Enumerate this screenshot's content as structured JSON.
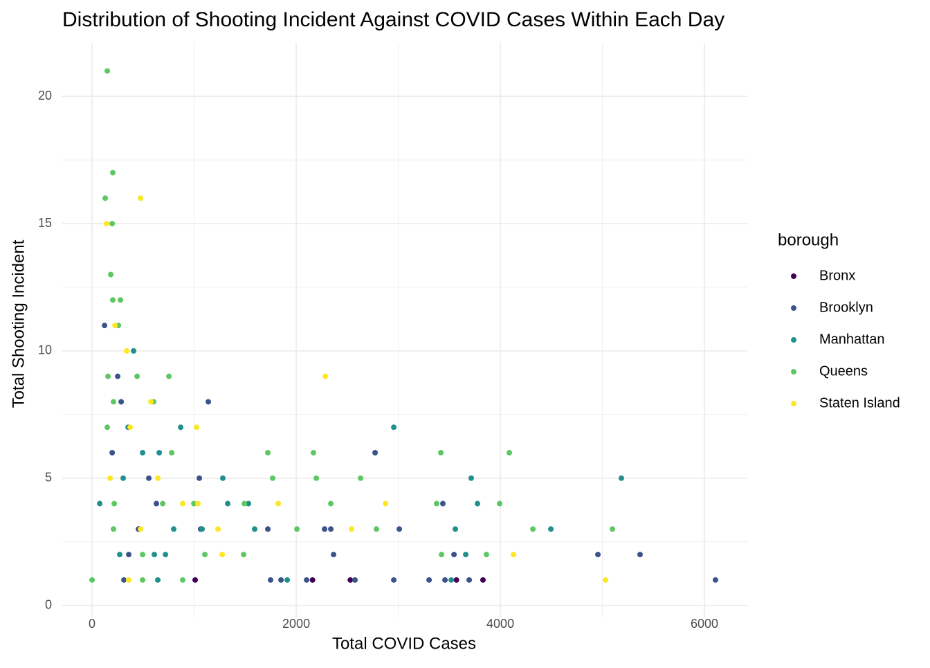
{
  "chart_data": {
    "type": "scatter",
    "title": "Distribution of Shooting Incident Against COVID Cases Within Each Day",
    "x_label": "Total COVID Cases",
    "y_label": "Total Shooting Incident",
    "legend_title": "borough",
    "legend_position": "right",
    "grid": true,
    "xlim": [
      -292,
      6420
    ],
    "ylim": [
      -0.5,
      22.1
    ],
    "xticks": [
      0,
      2000,
      4000,
      6000
    ],
    "yticks": [
      0,
      5,
      10,
      15,
      20
    ],
    "minor_xticks": [
      1000,
      3000,
      5000
    ],
    "minor_yticks": [
      2.5,
      7.5,
      12.5,
      17.5
    ],
    "series": [
      {
        "name": "Bronx",
        "color": "#440154",
        "x": [
          1010,
          2160,
          2530,
          3570,
          3830,
          460
        ],
        "values": [
          1,
          1,
          1,
          1,
          1,
          3
        ]
      },
      {
        "name": "Brooklyn",
        "color": "#3b528b",
        "x": [
          122,
          1139,
          2773,
          1051,
          3437,
          1722,
          2278,
          3010,
          2339,
          2366,
          4956,
          5369,
          3546,
          359,
          1749,
          1851,
          2102,
          2576,
          2956,
          3302,
          3458,
          3695,
          6108,
          312,
          251,
          285,
          197,
          556,
          1064,
          454,
          630
        ],
        "values": [
          11,
          8,
          6,
          5,
          4,
          3,
          3,
          3,
          3,
          2,
          2,
          2,
          2,
          2,
          1,
          1,
          1,
          1,
          1,
          1,
          1,
          1,
          1,
          1,
          9,
          8,
          6,
          5,
          3,
          3,
          4
        ]
      },
      {
        "name": "Manhattan",
        "color": "#21908c",
        "x": [
          75,
          407,
          868,
          2956,
          3715,
          5186,
          1281,
          1329,
          1532,
          3776,
          1593,
          3559,
          4495,
          1078,
          800,
          271,
          719,
          610,
          3661,
          1912,
          3519,
          644,
          658,
          353,
          495,
          305
        ],
        "values": [
          4,
          10,
          7,
          7,
          5,
          5,
          5,
          4,
          4,
          4,
          3,
          3,
          3,
          3,
          3,
          2,
          2,
          2,
          2,
          1,
          1,
          1,
          6,
          7,
          6,
          5
        ]
      },
      {
        "name": "Queens",
        "color": "#5dc863",
        "x": [
          149,
          203,
          129,
          197,
          183,
          203,
          278,
          258,
          156,
          753,
          441,
          603,
          210,
          1722,
          2169,
          3417,
          4088,
          780,
          1769,
          2197,
          2631,
          2339,
          3376,
          3993,
          1492,
          2007,
          2786,
          4319,
          5098,
          1105,
          1485,
          3424,
          3864,
          0,
          495,
          888,
          149,
          217,
          210,
          495,
          692,
          997
        ],
        "values": [
          21,
          17,
          16,
          15,
          13,
          12,
          12,
          11,
          9,
          9,
          9,
          8,
          8,
          6,
          6,
          6,
          6,
          6,
          5,
          5,
          5,
          4,
          4,
          4,
          4,
          3,
          3,
          3,
          3,
          2,
          2,
          2,
          2,
          1,
          1,
          1,
          7,
          4,
          3,
          2,
          4,
          4
        ]
      },
      {
        "name": "Staten Island",
        "color": "#fde725",
        "x": [
          475,
          142,
          224,
          339,
          2285,
          1024,
          373,
          176,
          644,
          1824,
          2875,
          888,
          1037,
          1234,
          2542,
          1275,
          4129,
          359,
          5031,
          475,
          576
        ],
        "values": [
          16,
          15,
          11,
          10,
          9,
          7,
          7,
          5,
          5,
          4,
          4,
          4,
          4,
          3,
          3,
          2,
          2,
          1,
          1,
          3,
          8
        ]
      }
    ]
  }
}
